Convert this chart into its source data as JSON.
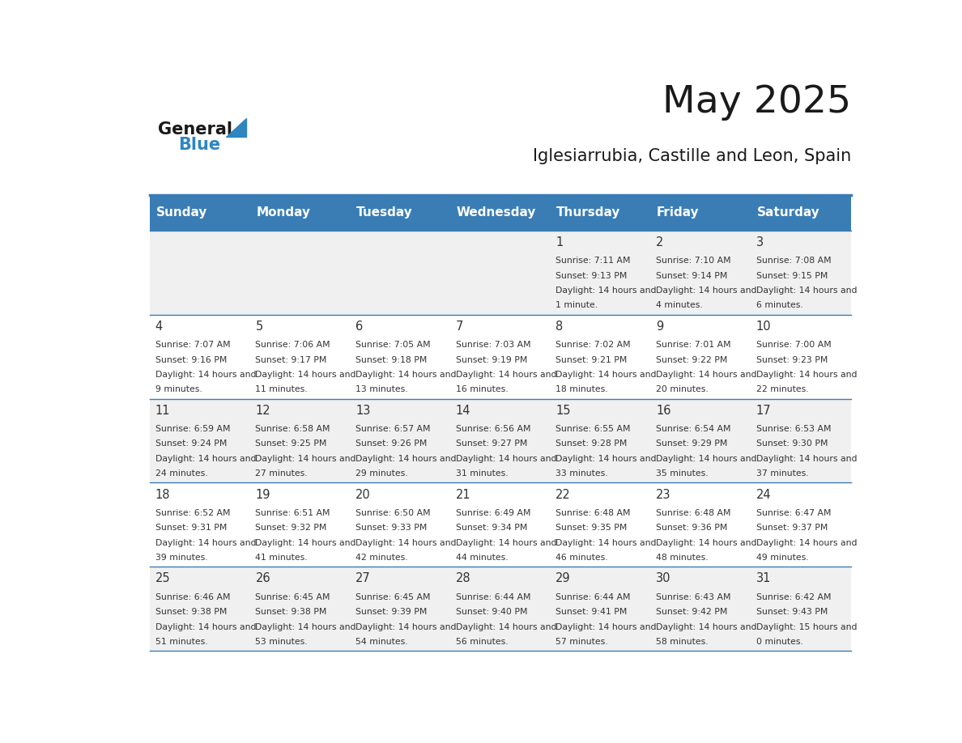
{
  "title": "May 2025",
  "subtitle": "Iglesiarrubia, Castille and Leon, Spain",
  "days_of_week": [
    "Sunday",
    "Monday",
    "Tuesday",
    "Wednesday",
    "Thursday",
    "Friday",
    "Saturday"
  ],
  "header_bg": "#3A7DB5",
  "header_text": "#FFFFFF",
  "cell_bg_odd": "#F0F0F0",
  "cell_bg_even": "#FFFFFF",
  "cell_text": "#333333",
  "border_color": "#3A7DB5",
  "title_color": "#1a1a1a",
  "subtitle_color": "#1a1a1a",
  "logo_general_color": "#1a1a1a",
  "logo_blue_color": "#2E86C1",
  "calendar_data": [
    {
      "day": 1,
      "col": 4,
      "row": 0,
      "sunrise": "7:11 AM",
      "sunset": "9:13 PM",
      "daylight": "14 hours and 1 minute."
    },
    {
      "day": 2,
      "col": 5,
      "row": 0,
      "sunrise": "7:10 AM",
      "sunset": "9:14 PM",
      "daylight": "14 hours and 4 minutes."
    },
    {
      "day": 3,
      "col": 6,
      "row": 0,
      "sunrise": "7:08 AM",
      "sunset": "9:15 PM",
      "daylight": "14 hours and 6 minutes."
    },
    {
      "day": 4,
      "col": 0,
      "row": 1,
      "sunrise": "7:07 AM",
      "sunset": "9:16 PM",
      "daylight": "14 hours and 9 minutes."
    },
    {
      "day": 5,
      "col": 1,
      "row": 1,
      "sunrise": "7:06 AM",
      "sunset": "9:17 PM",
      "daylight": "14 hours and 11 minutes."
    },
    {
      "day": 6,
      "col": 2,
      "row": 1,
      "sunrise": "7:05 AM",
      "sunset": "9:18 PM",
      "daylight": "14 hours and 13 minutes."
    },
    {
      "day": 7,
      "col": 3,
      "row": 1,
      "sunrise": "7:03 AM",
      "sunset": "9:19 PM",
      "daylight": "14 hours and 16 minutes."
    },
    {
      "day": 8,
      "col": 4,
      "row": 1,
      "sunrise": "7:02 AM",
      "sunset": "9:21 PM",
      "daylight": "14 hours and 18 minutes."
    },
    {
      "day": 9,
      "col": 5,
      "row": 1,
      "sunrise": "7:01 AM",
      "sunset": "9:22 PM",
      "daylight": "14 hours and 20 minutes."
    },
    {
      "day": 10,
      "col": 6,
      "row": 1,
      "sunrise": "7:00 AM",
      "sunset": "9:23 PM",
      "daylight": "14 hours and 22 minutes."
    },
    {
      "day": 11,
      "col": 0,
      "row": 2,
      "sunrise": "6:59 AM",
      "sunset": "9:24 PM",
      "daylight": "14 hours and 24 minutes."
    },
    {
      "day": 12,
      "col": 1,
      "row": 2,
      "sunrise": "6:58 AM",
      "sunset": "9:25 PM",
      "daylight": "14 hours and 27 minutes."
    },
    {
      "day": 13,
      "col": 2,
      "row": 2,
      "sunrise": "6:57 AM",
      "sunset": "9:26 PM",
      "daylight": "14 hours and 29 minutes."
    },
    {
      "day": 14,
      "col": 3,
      "row": 2,
      "sunrise": "6:56 AM",
      "sunset": "9:27 PM",
      "daylight": "14 hours and 31 minutes."
    },
    {
      "day": 15,
      "col": 4,
      "row": 2,
      "sunrise": "6:55 AM",
      "sunset": "9:28 PM",
      "daylight": "14 hours and 33 minutes."
    },
    {
      "day": 16,
      "col": 5,
      "row": 2,
      "sunrise": "6:54 AM",
      "sunset": "9:29 PM",
      "daylight": "14 hours and 35 minutes."
    },
    {
      "day": 17,
      "col": 6,
      "row": 2,
      "sunrise": "6:53 AM",
      "sunset": "9:30 PM",
      "daylight": "14 hours and 37 minutes."
    },
    {
      "day": 18,
      "col": 0,
      "row": 3,
      "sunrise": "6:52 AM",
      "sunset": "9:31 PM",
      "daylight": "14 hours and 39 minutes."
    },
    {
      "day": 19,
      "col": 1,
      "row": 3,
      "sunrise": "6:51 AM",
      "sunset": "9:32 PM",
      "daylight": "14 hours and 41 minutes."
    },
    {
      "day": 20,
      "col": 2,
      "row": 3,
      "sunrise": "6:50 AM",
      "sunset": "9:33 PM",
      "daylight": "14 hours and 42 minutes."
    },
    {
      "day": 21,
      "col": 3,
      "row": 3,
      "sunrise": "6:49 AM",
      "sunset": "9:34 PM",
      "daylight": "14 hours and 44 minutes."
    },
    {
      "day": 22,
      "col": 4,
      "row": 3,
      "sunrise": "6:48 AM",
      "sunset": "9:35 PM",
      "daylight": "14 hours and 46 minutes."
    },
    {
      "day": 23,
      "col": 5,
      "row": 3,
      "sunrise": "6:48 AM",
      "sunset": "9:36 PM",
      "daylight": "14 hours and 48 minutes."
    },
    {
      "day": 24,
      "col": 6,
      "row": 3,
      "sunrise": "6:47 AM",
      "sunset": "9:37 PM",
      "daylight": "14 hours and 49 minutes."
    },
    {
      "day": 25,
      "col": 0,
      "row": 4,
      "sunrise": "6:46 AM",
      "sunset": "9:38 PM",
      "daylight": "14 hours and 51 minutes."
    },
    {
      "day": 26,
      "col": 1,
      "row": 4,
      "sunrise": "6:45 AM",
      "sunset": "9:38 PM",
      "daylight": "14 hours and 53 minutes."
    },
    {
      "day": 27,
      "col": 2,
      "row": 4,
      "sunrise": "6:45 AM",
      "sunset": "9:39 PM",
      "daylight": "14 hours and 54 minutes."
    },
    {
      "day": 28,
      "col": 3,
      "row": 4,
      "sunrise": "6:44 AM",
      "sunset": "9:40 PM",
      "daylight": "14 hours and 56 minutes."
    },
    {
      "day": 29,
      "col": 4,
      "row": 4,
      "sunrise": "6:44 AM",
      "sunset": "9:41 PM",
      "daylight": "14 hours and 57 minutes."
    },
    {
      "day": 30,
      "col": 5,
      "row": 4,
      "sunrise": "6:43 AM",
      "sunset": "9:42 PM",
      "daylight": "14 hours and 58 minutes."
    },
    {
      "day": 31,
      "col": 6,
      "row": 4,
      "sunrise": "6:42 AM",
      "sunset": "9:43 PM",
      "daylight": "15 hours and 0 minutes."
    }
  ]
}
